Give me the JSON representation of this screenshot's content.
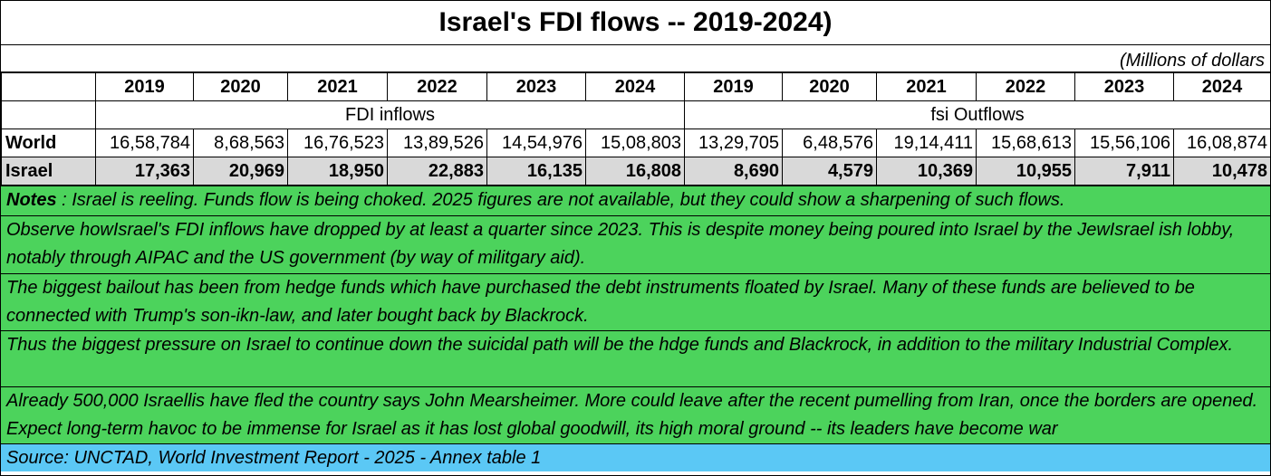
{
  "title": "Israel's  FDI flows --  2019-2024)",
  "units": "(Millions of dollars",
  "years": [
    "2019",
    "2020",
    "2021",
    "2022",
    "2023",
    "2024",
    "2019",
    "2020",
    "2021",
    "2022",
    "2023",
    "2024"
  ],
  "groups": {
    "inflows": "FDI inflows",
    "outflows": "fsi Outflows"
  },
  "rows": [
    {
      "label": "World",
      "values": [
        "16,58,784",
        "8,68,563",
        "16,76,523",
        "13,89,526",
        "14,54,976",
        "15,08,803",
        "13,29,705",
        "6,48,576",
        "19,14,411",
        "15,68,613",
        "15,56,106",
        "16,08,874"
      ]
    },
    {
      "label": "Israel",
      "values": [
        "17,363",
        "20,969",
        "18,950",
        "22,883",
        "16,135",
        "16,808",
        "8,690",
        "4,579",
        "10,369",
        "10,955",
        "7,911",
        "10,478"
      ]
    }
  ],
  "notes": {
    "label": "Notes",
    "n1": " :  Israel is reeling.  Funds flow is being choked.  2025 figures are not available, but they could show a sharpening of such flows.",
    "n2": "Observe howIsrael's  FDI inflows have dropped by at least a quarter since 2023. This is despite money being poured into Israel by the JewIsrael ish lobby, notably through AIPAC and the US government (by way of militgary aid).",
    "n3": "The biggest bailout has been from hedge funds which have purchased the debt instruments floated by Israel.  Many of these funds are believed to be connected with Trump's son-ikn-law, and later bought back by Blackrock.",
    "n4": "Thus the biggest pressure on Israel to continue down the suicidal path will be the hdge funds and Blackrock, in addition to the military Industrial Complex.",
    "n5": "Already 500,000 Israellis have fled the country says John Mearsheimer.  More could leave after the recent pumelling from Iran, once the borders are opened.  Expect long-term havoc to be immense for Israel as it has lost global goodwill, its high moral ground -- its leaders have become war"
  },
  "source": "Source: UNCTAD, World Investment Report - 2025 - Annex table 1",
  "colors": {
    "notes_bg": "#4cd35c",
    "source_bg": "#5bc8f5",
    "highlight_row": "#d9d9d9"
  }
}
